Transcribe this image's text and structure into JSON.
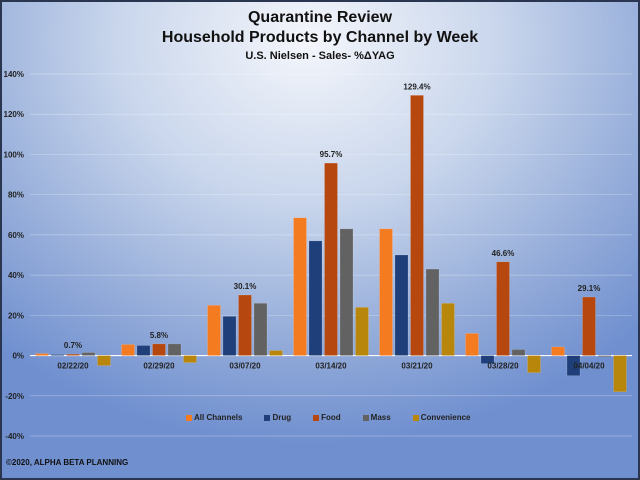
{
  "chart_data": {
    "type": "bar",
    "title": "Quarantine Review",
    "subtitle": "Household Products by Channel by Week",
    "subtitle2": "U.S. Nielsen - Sales- %ΔYAG",
    "xlabel": "",
    "ylabel": "",
    "ylim": [
      -40,
      140
    ],
    "yticks": [
      -40,
      -20,
      0,
      20,
      40,
      60,
      80,
      100,
      120,
      140
    ],
    "ytick_labels": [
      "-40%",
      "-20%",
      "0%",
      "20%",
      "40%",
      "60%",
      "80%",
      "100%",
      "120%",
      "140%"
    ],
    "grid": true,
    "legend_position": "bottom",
    "categories": [
      "02/22/20",
      "02/29/20",
      "03/07/20",
      "03/14/20",
      "03/21/20",
      "03/28/20",
      "04/04/20"
    ],
    "series": [
      {
        "name": "All Channels",
        "color": "#f47b20",
        "values": [
          1.0,
          5.5,
          25.0,
          68.5,
          63.0,
          11.0,
          4.3
        ]
      },
      {
        "name": "Drug",
        "color": "#1f3f7a",
        "values": [
          0.5,
          5.0,
          19.5,
          57.0,
          50.0,
          -4.0,
          -10.0
        ]
      },
      {
        "name": "Food",
        "color": "#b5470f",
        "values": [
          0.7,
          5.8,
          30.1,
          95.7,
          129.4,
          46.6,
          29.1
        ]
      },
      {
        "name": "Mass",
        "color": "#626262",
        "values": [
          1.5,
          5.8,
          26.0,
          63.0,
          43.0,
          3.0,
          -0.5
        ]
      },
      {
        "name": "Convenience",
        "color": "#b8860b",
        "values": [
          -5.0,
          -3.5,
          2.5,
          24.0,
          26.0,
          -8.5,
          -18.0
        ]
      }
    ],
    "data_labels": [
      {
        "series": "Food",
        "category": "02/22/20",
        "text": "0.7%"
      },
      {
        "series": "Food",
        "category": "02/29/20",
        "text": "5.8%"
      },
      {
        "series": "Food",
        "category": "03/07/20",
        "text": "30.1%"
      },
      {
        "series": "Food",
        "category": "03/14/20",
        "text": "95.7%"
      },
      {
        "series": "Food",
        "category": "03/21/20",
        "text": "129.4%"
      },
      {
        "series": "Food",
        "category": "03/28/20",
        "text": "46.6%"
      },
      {
        "series": "Food",
        "category": "04/04/20",
        "text": "29.1%"
      }
    ]
  },
  "footer": {
    "copyright": "©2020, ALPHA BETA PLANNING"
  }
}
